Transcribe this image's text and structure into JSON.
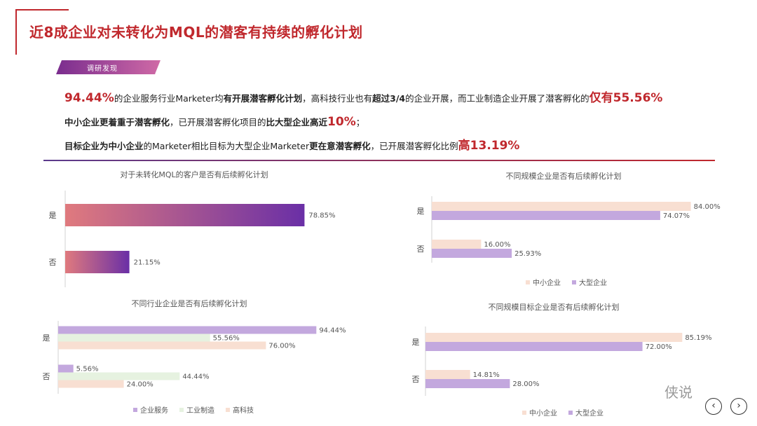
{
  "page": {
    "title": "近8成企业对未转化为MQL的潜客有持续的孵化计划",
    "tag": "调研发现",
    "watermark": "侠说",
    "colors": {
      "accent": "#c0282d",
      "purple": "#6a2fa6",
      "violet": "#c3a8de",
      "peach": "#f8dfd2",
      "green": "#e6f2e0"
    }
  },
  "findings": [
    [
      "94.44%",
      "的企业服务行业Marketer均",
      "有开展潜客孵化计划",
      "，高科技行业也有",
      "超过3/4",
      "的企业开展，而工业制造企业开展了潜客孵化的",
      "仅有55.56%"
    ],
    [
      "中小企业更着重于潜客孵化",
      "，已开展潜客孵化项目的",
      "比大型企业高近",
      "10%",
      "；"
    ],
    [
      "目标企业为中小企业",
      "的Marketer相比目标为大型企业Marketer",
      "更在意潜客孵化",
      "，已开展潜客孵化比例",
      "高13.19%"
    ]
  ],
  "chart_data": [
    {
      "type": "bar",
      "title": "对于未转化MQL的客户是否有后续孵化计划",
      "categories": [
        "是",
        "否"
      ],
      "series": [
        {
          "values": [
            78.85,
            21.15
          ]
        }
      ],
      "value_labels": [
        "78.85%",
        "21.15%"
      ],
      "xlim": [
        0,
        100
      ]
    },
    {
      "type": "bar",
      "title": "不同规模企业是否有后续孵化计划",
      "categories": [
        "是",
        "否"
      ],
      "series": [
        {
          "name": "中小企业",
          "values": [
            84.0,
            16.0
          ],
          "labels": [
            "84.00%",
            "16.00%"
          ],
          "color": "#f8dfd2"
        },
        {
          "name": "大型企业",
          "values": [
            74.07,
            25.93
          ],
          "labels": [
            "74.07%",
            "25.93%"
          ],
          "color": "#c3a8de"
        }
      ],
      "xlim": [
        0,
        100
      ]
    },
    {
      "type": "bar",
      "title": "不同行业企业是否有后续孵化计划",
      "categories": [
        "是",
        "否"
      ],
      "series": [
        {
          "name": "企业服务",
          "values": [
            94.44,
            5.56
          ],
          "labels": [
            "94.44%",
            "5.56%"
          ],
          "color": "#c3a8de"
        },
        {
          "name": "工业制造",
          "values": [
            55.56,
            44.44
          ],
          "labels": [
            "55.56%",
            "44.44%"
          ],
          "color": "#e6f2e0"
        },
        {
          "name": "高科技",
          "values": [
            76.0,
            24.0
          ],
          "labels": [
            "76.00%",
            "24.00%"
          ],
          "color": "#f8dfd2"
        }
      ],
      "xlim": [
        0,
        100
      ]
    },
    {
      "type": "bar",
      "title": "不同规模目标企业是否有后续孵化计划",
      "categories": [
        "是",
        "否"
      ],
      "series": [
        {
          "name": "中小企业",
          "values": [
            85.19,
            14.81
          ],
          "labels": [
            "85.19%",
            "14.81%"
          ],
          "color": "#f8dfd2"
        },
        {
          "name": "大型企业",
          "values": [
            72.0,
            28.0
          ],
          "labels": [
            "72.00%",
            "28.00%"
          ],
          "color": "#c3a8de"
        }
      ],
      "xlim": [
        0,
        100
      ]
    }
  ]
}
